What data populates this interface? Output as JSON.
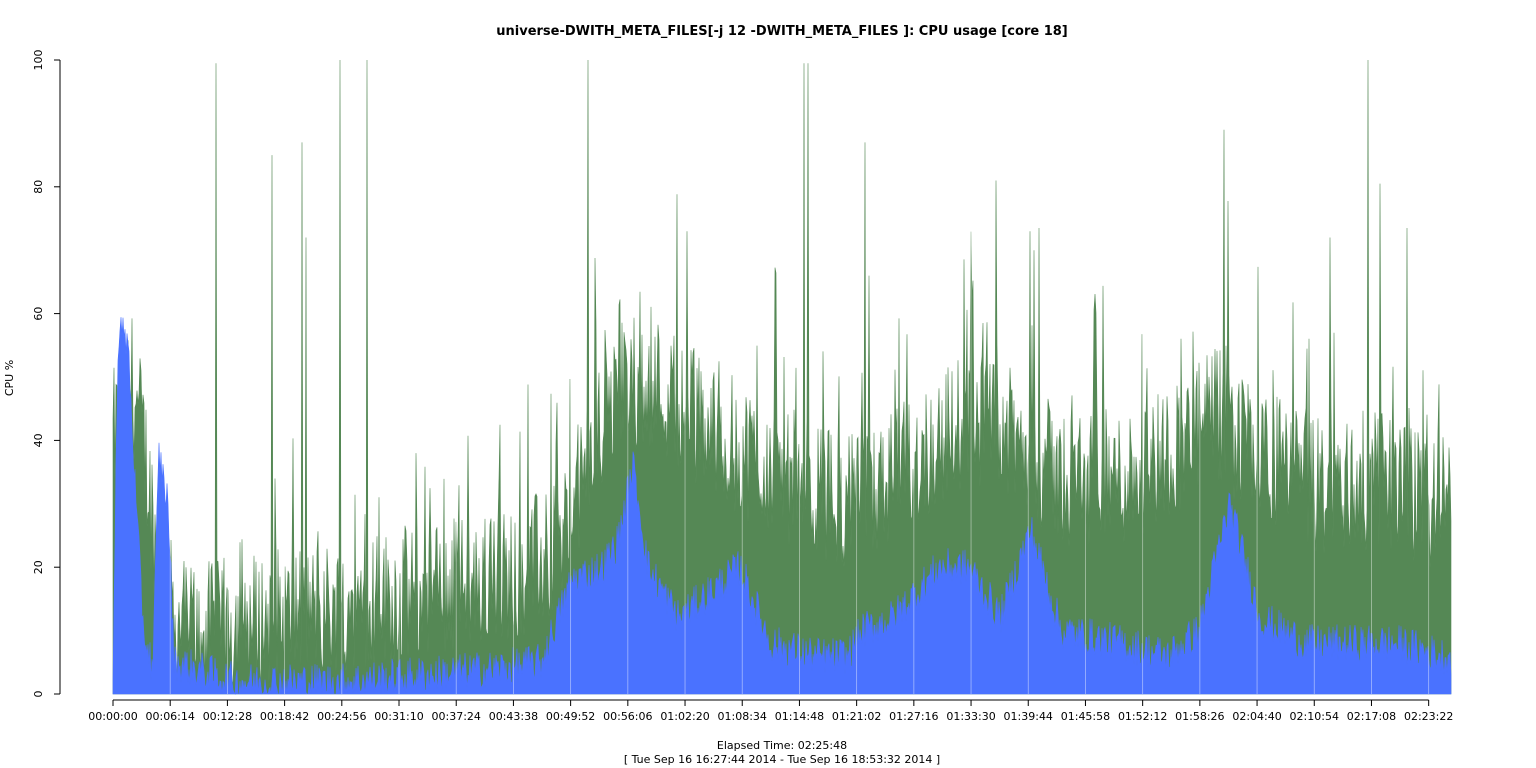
{
  "chart_data": {
    "type": "area",
    "title": "universe-DWITH_META_FILES[-j 12 -DWITH_META_FILES ]: CPU usage [core 18]",
    "ylabel": "CPU %",
    "xlabel": "Elapsed Time: 02:25:48",
    "subtitle": "[ Tue Sep 16 16:27:44 2014 - Tue Sep 16 18:53:32 2014 ]",
    "ylim": [
      0,
      100
    ],
    "yticks": [
      "0",
      "20",
      "40",
      "60",
      "80",
      "100"
    ],
    "xticks": [
      "00:00:00",
      "00:06:14",
      "00:12:28",
      "00:18:42",
      "00:24:56",
      "00:31:10",
      "00:37:24",
      "00:43:38",
      "00:49:52",
      "00:56:06",
      "01:02:20",
      "01:08:34",
      "01:14:48",
      "01:21:02",
      "01:27:16",
      "01:33:30",
      "01:39:44",
      "01:45:58",
      "01:52:12",
      "01:58:26",
      "02:04:40",
      "02:10:54",
      "02:17:08",
      "02:23:22"
    ],
    "xlim_seconds": [
      0,
      8748
    ],
    "grid": false,
    "series": [
      {
        "color": "#558855",
        "baseline_points": [
          [
            0,
            40
          ],
          [
            60,
            45
          ],
          [
            120,
            50
          ],
          [
            200,
            40
          ],
          [
            300,
            20
          ],
          [
            400,
            12
          ],
          [
            600,
            10
          ],
          [
            1000,
            12
          ],
          [
            1500,
            14
          ],
          [
            2000,
            16
          ],
          [
            2500,
            18
          ],
          [
            2900,
            22
          ],
          [
            3100,
            36
          ],
          [
            3300,
            48
          ],
          [
            3500,
            50
          ],
          [
            3700,
            46
          ],
          [
            4000,
            40
          ],
          [
            4300,
            36
          ],
          [
            4600,
            32
          ],
          [
            4900,
            30
          ],
          [
            5300,
            38
          ],
          [
            5600,
            44
          ],
          [
            5900,
            40
          ],
          [
            6200,
            34
          ],
          [
            6600,
            34
          ],
          [
            7000,
            40
          ],
          [
            7200,
            44
          ],
          [
            7500,
            38
          ],
          [
            7900,
            32
          ],
          [
            8300,
            34
          ],
          [
            8600,
            30
          ],
          [
            8748,
            34
          ]
        ],
        "spike_peaks_pct": [
          100,
          99.5,
          95.8,
          93.6,
          89,
          87,
          85,
          81,
          80.5,
          73.5,
          73,
          70,
          69,
          66,
          64,
          100,
          96,
          72
        ]
      },
      {
        "color": "#4a72ff",
        "baseline_points": [
          [
            0,
            0
          ],
          [
            20,
            40
          ],
          [
            40,
            58
          ],
          [
            100,
            55
          ],
          [
            150,
            30
          ],
          [
            200,
            10
          ],
          [
            260,
            4
          ],
          [
            300,
            38
          ],
          [
            360,
            30
          ],
          [
            400,
            5
          ],
          [
            800,
            2
          ],
          [
            1500,
            2
          ],
          [
            2000,
            3
          ],
          [
            2500,
            4
          ],
          [
            2800,
            5
          ],
          [
            3000,
            18
          ],
          [
            3200,
            20
          ],
          [
            3300,
            24
          ],
          [
            3400,
            36
          ],
          [
            3500,
            20
          ],
          [
            3700,
            12
          ],
          [
            3900,
            16
          ],
          [
            4100,
            20
          ],
          [
            4300,
            8
          ],
          [
            4600,
            6
          ],
          [
            4800,
            6
          ],
          [
            4900,
            10
          ],
          [
            5100,
            12
          ],
          [
            5400,
            20
          ],
          [
            5600,
            20
          ],
          [
            5800,
            12
          ],
          [
            6000,
            26
          ],
          [
            6200,
            10
          ],
          [
            6600,
            8
          ],
          [
            6900,
            6
          ],
          [
            7100,
            10
          ],
          [
            7300,
            30
          ],
          [
            7500,
            12
          ],
          [
            7800,
            8
          ],
          [
            8100,
            8
          ],
          [
            8400,
            8
          ],
          [
            8700,
            6
          ],
          [
            8748,
            6
          ]
        ]
      }
    ]
  }
}
